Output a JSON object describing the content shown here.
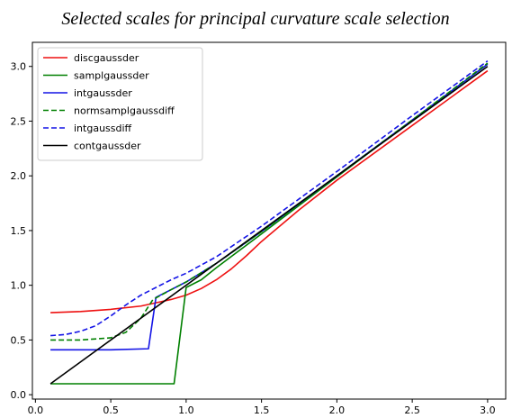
{
  "chart_data": {
    "type": "line",
    "title": "Selected scales for principal curvature scale selection",
    "xlabel": "",
    "ylabel": "",
    "xlim": [
      -0.02,
      3.12
    ],
    "ylim": [
      -0.04,
      3.22
    ],
    "xticks": [
      0.0,
      0.5,
      1.0,
      1.5,
      2.0,
      2.5,
      3.0
    ],
    "yticks": [
      0.0,
      0.5,
      1.0,
      1.5,
      2.0,
      2.5,
      3.0
    ],
    "xtick_labels": [
      "0.0",
      "0.5",
      "1.0",
      "1.5",
      "2.0",
      "2.5",
      "3.0"
    ],
    "ytick_labels": [
      "0.0",
      "0.5",
      "1.0",
      "1.5",
      "2.0",
      "2.5",
      "3.0"
    ],
    "grid": false,
    "legend_position": "top-left",
    "series": [
      {
        "name": "discgaussder",
        "color": "#ee1111",
        "dash": "solid",
        "x": [
          0.1,
          0.3,
          0.5,
          0.7,
          0.8,
          0.9,
          1.0,
          1.1,
          1.2,
          1.3,
          1.4,
          1.5,
          1.75,
          2.0,
          2.5,
          3.0
        ],
        "y": [
          0.75,
          0.76,
          0.78,
          0.81,
          0.84,
          0.87,
          0.91,
          0.97,
          1.05,
          1.15,
          1.27,
          1.4,
          1.69,
          1.96,
          2.46,
          2.96
        ]
      },
      {
        "name": "samplgaussder",
        "color": "#008000",
        "dash": "solid",
        "x": [
          0.1,
          0.92,
          1.0,
          1.1,
          1.2,
          1.5,
          2.0,
          2.5,
          3.0
        ],
        "y": [
          0.1,
          0.1,
          0.98,
          1.05,
          1.16,
          1.47,
          1.99,
          2.51,
          3.02
        ]
      },
      {
        "name": "intgaussder",
        "color": "#1414e6",
        "dash": "solid",
        "x": [
          0.1,
          0.5,
          0.75,
          0.8,
          0.9,
          1.0,
          1.2,
          1.5,
          2.0,
          2.5,
          3.0
        ],
        "y": [
          0.41,
          0.41,
          0.42,
          0.89,
          0.96,
          1.03,
          1.2,
          1.49,
          2.0,
          2.51,
          3.02
        ]
      },
      {
        "name": "normsamplgaussdiff",
        "color": "#008000",
        "dash": "dashed",
        "x": [
          0.1,
          0.3,
          0.5,
          0.6,
          0.7,
          0.78,
          0.9,
          1.0,
          1.2,
          1.5,
          2.0,
          2.5,
          3.0
        ],
        "y": [
          0.5,
          0.5,
          0.52,
          0.57,
          0.7,
          0.87,
          0.96,
          1.03,
          1.2,
          1.49,
          2.0,
          2.51,
          3.03
        ]
      },
      {
        "name": "intgaussdiff",
        "color": "#1414e6",
        "dash": "dashed",
        "x": [
          0.1,
          0.2,
          0.3,
          0.4,
          0.5,
          0.6,
          0.7,
          0.8,
          0.9,
          1.0,
          1.2,
          1.5,
          2.0,
          2.5,
          3.0
        ],
        "y": [
          0.54,
          0.55,
          0.58,
          0.63,
          0.72,
          0.82,
          0.91,
          0.98,
          1.05,
          1.11,
          1.26,
          1.54,
          2.04,
          2.55,
          3.05
        ]
      },
      {
        "name": "contgaussder",
        "color": "#000000",
        "dash": "solid",
        "x": [
          0.1,
          3.0
        ],
        "y": [
          0.1,
          3.0
        ]
      }
    ]
  }
}
